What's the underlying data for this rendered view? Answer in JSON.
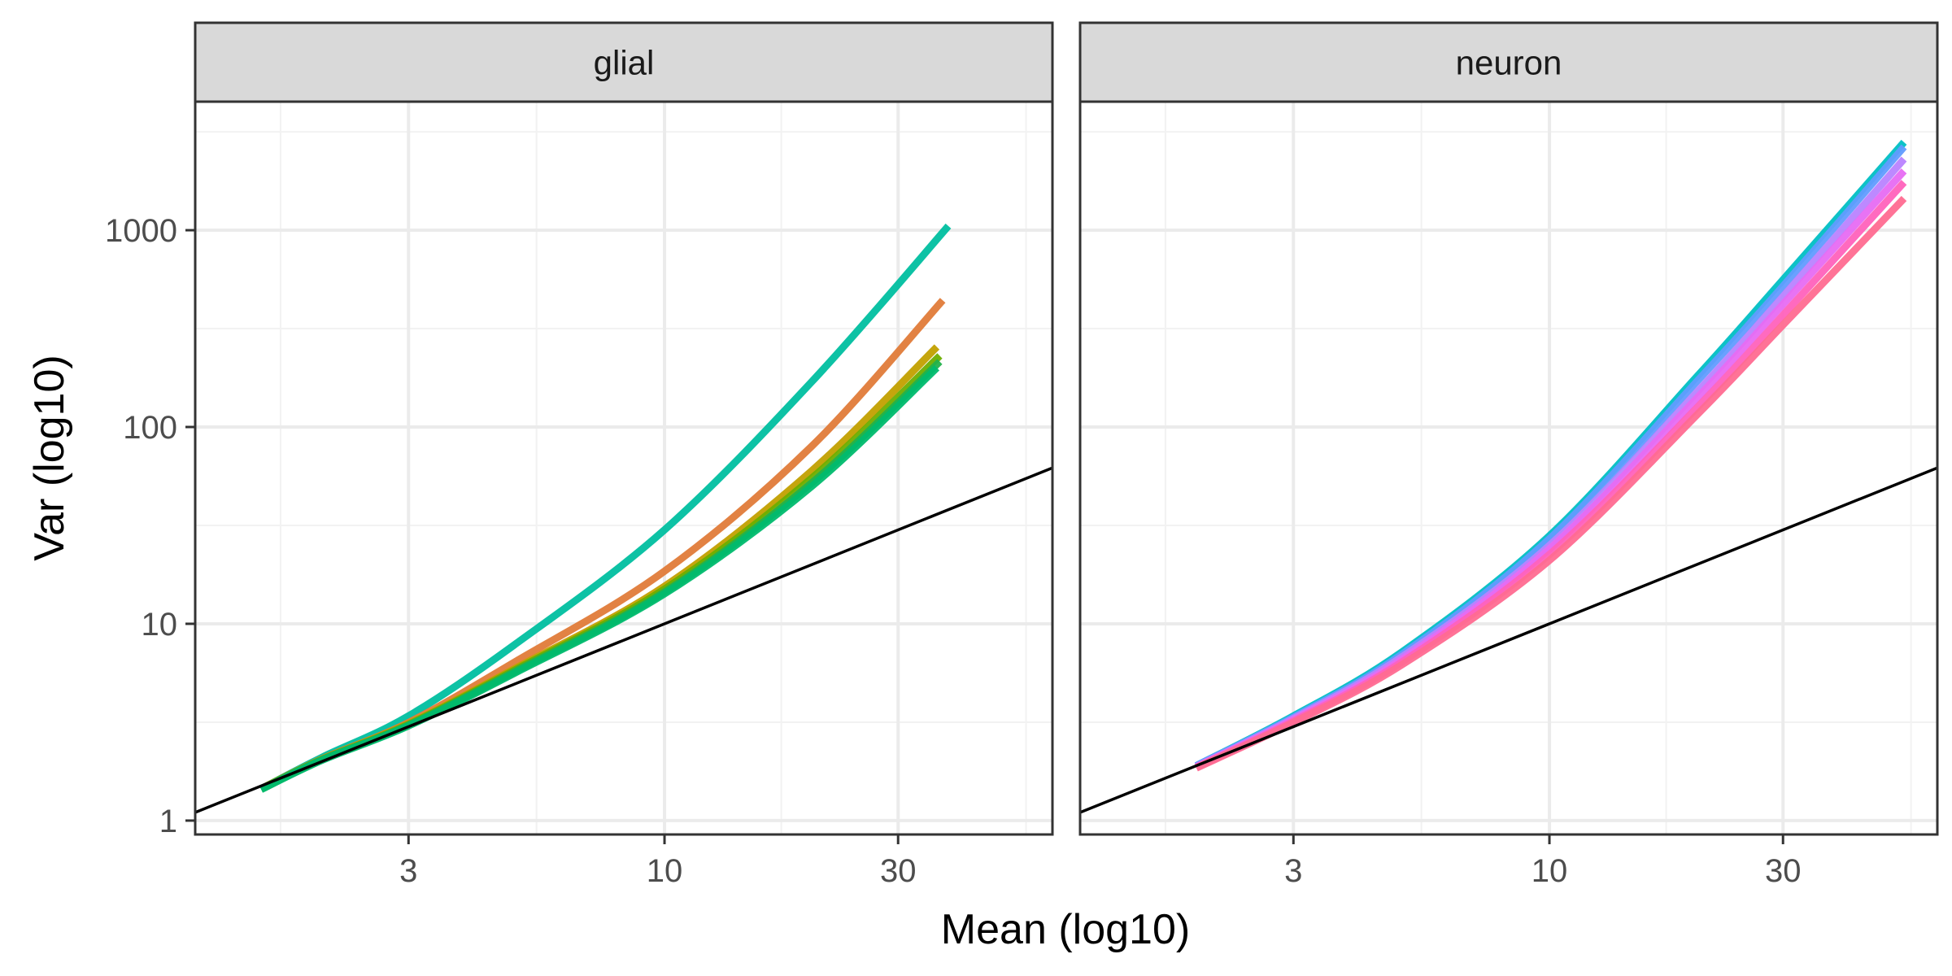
{
  "figure": {
    "xlabel": "Mean (log10)",
    "ylabel": "Var (log10)"
  },
  "chart_data": {
    "type": "line",
    "facets": [
      "glial",
      "neuron"
    ],
    "x_scale": "log10",
    "y_scale": "log10",
    "xlim": [
      1.1,
      62
    ],
    "ylim": [
      0.85,
      4500
    ],
    "x_ticks": [
      3,
      10,
      30
    ],
    "x_tick_labels": [
      "3",
      "10",
      "30"
    ],
    "y_ticks": [
      1,
      10,
      100,
      1000
    ],
    "y_tick_labels": [
      "1",
      "10",
      "100",
      "1000"
    ],
    "grid": true,
    "legend": "none",
    "reference_line": {
      "label": "",
      "equation": "var = mean",
      "color": "#000000"
    },
    "panels": [
      {
        "facet": "glial",
        "series": [
          {
            "color": "#00BFA0",
            "points": [
              [
                1.5,
                1.45
              ],
              [
                2,
                2.1
              ],
              [
                3,
                3.4
              ],
              [
                5,
                8.0
              ],
              [
                10,
                30
              ],
              [
                20,
                170
              ],
              [
                38,
                1050
              ]
            ]
          },
          {
            "color": "#E07B39",
            "points": [
              [
                1.5,
                1.45
              ],
              [
                2,
                2.06
              ],
              [
                3,
                3.15
              ],
              [
                5,
                6.5
              ],
              [
                10,
                18.5
              ],
              [
                20,
                80
              ],
              [
                37,
                440
              ]
            ]
          },
          {
            "color": "#C2A000",
            "points": [
              [
                1.5,
                1.45
              ],
              [
                2,
                2.05
              ],
              [
                3,
                3.1
              ],
              [
                5,
                6.0
              ],
              [
                10,
                15.5
              ],
              [
                20,
                60
              ],
              [
                36,
                255
              ]
            ]
          },
          {
            "color": "#6DAE00",
            "points": [
              [
                1.5,
                1.45
              ],
              [
                2,
                2.05
              ],
              [
                3,
                3.08
              ],
              [
                5,
                5.9
              ],
              [
                10,
                15
              ],
              [
                20,
                55
              ],
              [
                36.5,
                230
              ]
            ]
          },
          {
            "color": "#22B24C",
            "points": [
              [
                1.5,
                1.44
              ],
              [
                2,
                2.04
              ],
              [
                3,
                3.05
              ],
              [
                5,
                5.8
              ],
              [
                10,
                14.5
              ],
              [
                20,
                52
              ],
              [
                36.5,
                215
              ]
            ]
          },
          {
            "color": "#00BB6E",
            "points": [
              [
                1.5,
                1.44
              ],
              [
                2,
                2.03
              ],
              [
                3,
                3.03
              ],
              [
                5,
                5.7
              ],
              [
                10,
                14.2
              ],
              [
                20,
                50
              ],
              [
                36,
                200
              ]
            ]
          }
        ]
      },
      {
        "facet": "neuron",
        "series": [
          {
            "color": "#00BFC4",
            "points": [
              [
                1.9,
                1.9
              ],
              [
                3,
                3.4
              ],
              [
                5,
                7.2
              ],
              [
                10,
                28
              ],
              [
                20,
                180
              ],
              [
                30,
                560
              ],
              [
                53,
                2800
              ]
            ]
          },
          {
            "color": "#619CFF",
            "points": [
              [
                1.9,
                1.9
              ],
              [
                3,
                3.35
              ],
              [
                5,
                7.0
              ],
              [
                10,
                27
              ],
              [
                20,
                170
              ],
              [
                30,
                520
              ],
              [
                53,
                2650
              ]
            ]
          },
          {
            "color": "#B983FF",
            "points": [
              [
                1.9,
                1.88
              ],
              [
                3,
                3.3
              ],
              [
                5,
                6.8
              ],
              [
                10,
                25
              ],
              [
                20,
                150
              ],
              [
                30,
                460
              ],
              [
                53,
                2300
              ]
            ]
          },
          {
            "color": "#E76BF3",
            "points": [
              [
                1.9,
                1.87
              ],
              [
                3,
                3.25
              ],
              [
                5,
                6.6
              ],
              [
                10,
                24
              ],
              [
                20,
                140
              ],
              [
                30,
                420
              ],
              [
                53,
                2000
              ]
            ]
          },
          {
            "color": "#FF62BC",
            "points": [
              [
                1.9,
                1.86
              ],
              [
                3,
                3.2
              ],
              [
                5,
                6.4
              ],
              [
                10,
                22.5
              ],
              [
                20,
                125
              ],
              [
                30,
                370
              ],
              [
                53,
                1750
              ]
            ]
          },
          {
            "color": "#FF6C91",
            "points": [
              [
                1.9,
                1.85
              ],
              [
                3,
                3.15
              ],
              [
                5,
                6.2
              ],
              [
                10,
                21
              ],
              [
                20,
                115
              ],
              [
                30,
                330
              ],
              [
                53,
                1450
              ]
            ]
          }
        ]
      }
    ]
  }
}
